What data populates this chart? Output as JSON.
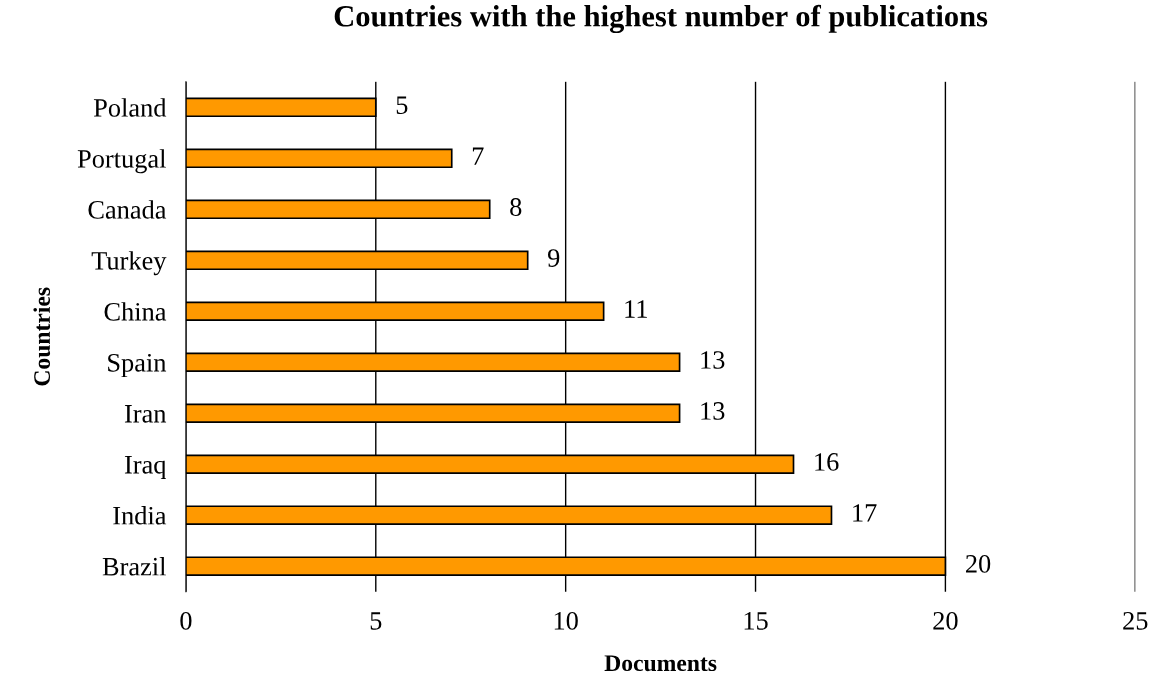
{
  "chart_data": {
    "type": "bar",
    "orientation": "horizontal",
    "title": "Countries with the highest number of publications",
    "xlabel": "Documents",
    "ylabel": "Countries",
    "categories": [
      "Poland",
      "Portugal",
      "Canada",
      "Turkey",
      "China",
      "Spain",
      "Iran",
      "Iraq",
      "India",
      "Brazil"
    ],
    "values": [
      5,
      7,
      8,
      9,
      11,
      13,
      13,
      16,
      17,
      20
    ],
    "color": "#ff9900",
    "xlim": [
      0,
      25
    ],
    "xticks": [
      0,
      5,
      10,
      15,
      20,
      25
    ],
    "grid": "x",
    "data_labels": true
  }
}
